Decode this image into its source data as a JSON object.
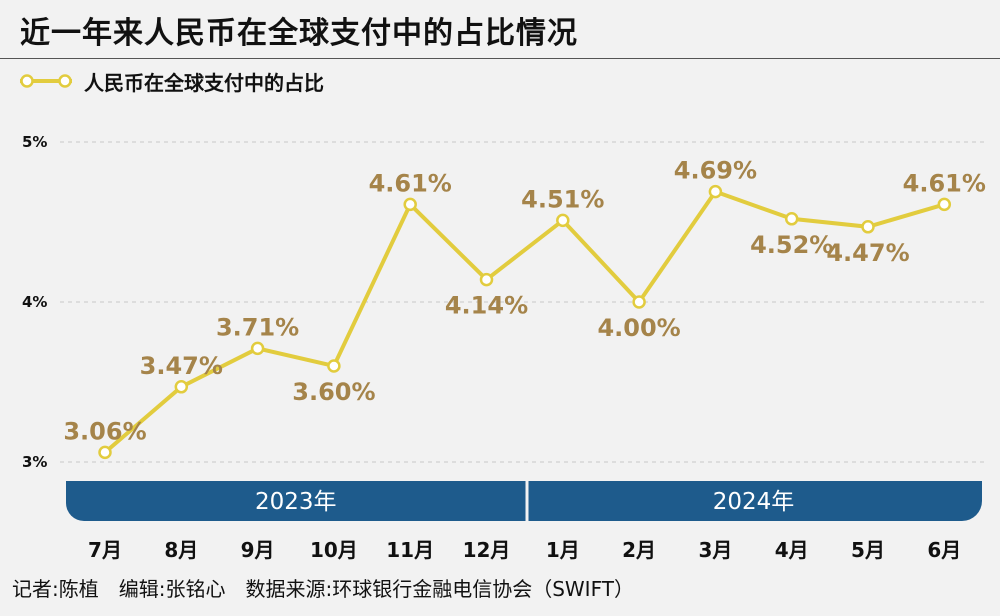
{
  "title": "近一年来人民币在全球支付中的占比情况",
  "credits": "记者:陈植　编辑:张铭心　数据来源:环球银行金融电信协会（SWIFT）",
  "colors": {
    "line": "#e2cc3e",
    "label": "#a5844a",
    "band": "#1e5b8c",
    "background": "#f2f2f2"
  },
  "chart_data": {
    "type": "line",
    "title": "近一年来人民币在全球支付中的占比情况",
    "categories": [
      "7月",
      "8月",
      "9月",
      "10月",
      "11月",
      "12月",
      "1月",
      "2月",
      "3月",
      "4月",
      "5月",
      "6月"
    ],
    "series": [
      {
        "name": "人民币在全球支付中的占比",
        "values": [
          3.06,
          3.47,
          3.71,
          3.6,
          4.61,
          4.14,
          4.51,
          4.0,
          4.69,
          4.52,
          4.47,
          4.61
        ],
        "labels": [
          "3.06%",
          "3.47%",
          "3.71%",
          "3.60%",
          "4.61%",
          "4.14%",
          "4.51%",
          "4.00%",
          "4.69%",
          "4.52%",
          "4.47%",
          "4.61%"
        ],
        "label_position": [
          "above",
          "above",
          "above",
          "below",
          "above",
          "below",
          "above",
          "below",
          "above",
          "below",
          "below",
          "above"
        ]
      }
    ],
    "yticks": [
      {
        "value": 3,
        "label": "3%"
      },
      {
        "value": 4,
        "label": "4%"
      },
      {
        "value": 5,
        "label": "5%"
      }
    ],
    "ylim": [
      3,
      5
    ],
    "year_groups": [
      {
        "label": "2023年",
        "start": 0,
        "end": 5
      },
      {
        "label": "2024年",
        "start": 6,
        "end": 11
      }
    ],
    "grid": "horizontal dashed",
    "legend_position": "top-left"
  }
}
